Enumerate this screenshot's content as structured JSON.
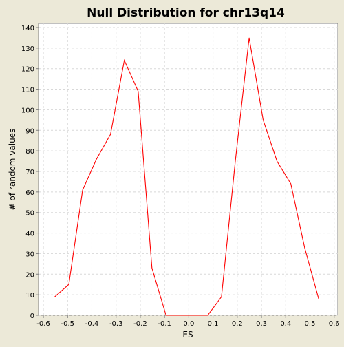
{
  "chart_data": {
    "type": "line",
    "title": "Null Distribution for chr13q14",
    "xlabel": "ES",
    "ylabel": "# of random values",
    "xlim": [
      -0.62,
      0.615
    ],
    "ylim": [
      0,
      142
    ],
    "x_ticks": [
      -0.6,
      -0.5,
      -0.4,
      -0.3,
      -0.2,
      -0.1,
      0.0,
      0.1,
      0.2,
      0.3,
      0.4,
      0.5,
      0.6
    ],
    "x_tick_labels": [
      "-0.6",
      "-0.5",
      "-0.4",
      "-0.3",
      "-0.2",
      "-0.1",
      "0.0",
      "0.1",
      "0.2",
      "0.3",
      "0.4",
      "0.5",
      "0.6"
    ],
    "y_ticks": [
      0,
      10,
      20,
      30,
      40,
      50,
      60,
      70,
      80,
      90,
      100,
      110,
      120,
      130,
      140
    ],
    "y_tick_labels": [
      "0",
      "10",
      "20",
      "30",
      "40",
      "50",
      "60",
      "70",
      "80",
      "90",
      "100",
      "110",
      "120",
      "130",
      "140"
    ],
    "grid": true,
    "series": [
      {
        "color": "#FF0000",
        "x": [
          -0.553,
          -0.495,
          -0.438,
          -0.381,
          -0.323,
          -0.266,
          -0.209,
          -0.152,
          -0.094,
          -0.037,
          0.02,
          0.078,
          0.135,
          0.192,
          0.249,
          0.307,
          0.364,
          0.421,
          0.478,
          0.536
        ],
        "y": [
          9,
          15,
          61,
          76,
          88,
          124,
          109,
          23,
          0,
          0,
          0,
          0,
          9,
          75,
          135,
          95,
          75,
          64,
          33,
          8
        ]
      }
    ],
    "colors": {
      "background": "#ECE9D8",
      "plot_background": "#FFFFFF",
      "grid": "#D8D8D8",
      "axis": "#808080",
      "text": "#000000"
    }
  }
}
